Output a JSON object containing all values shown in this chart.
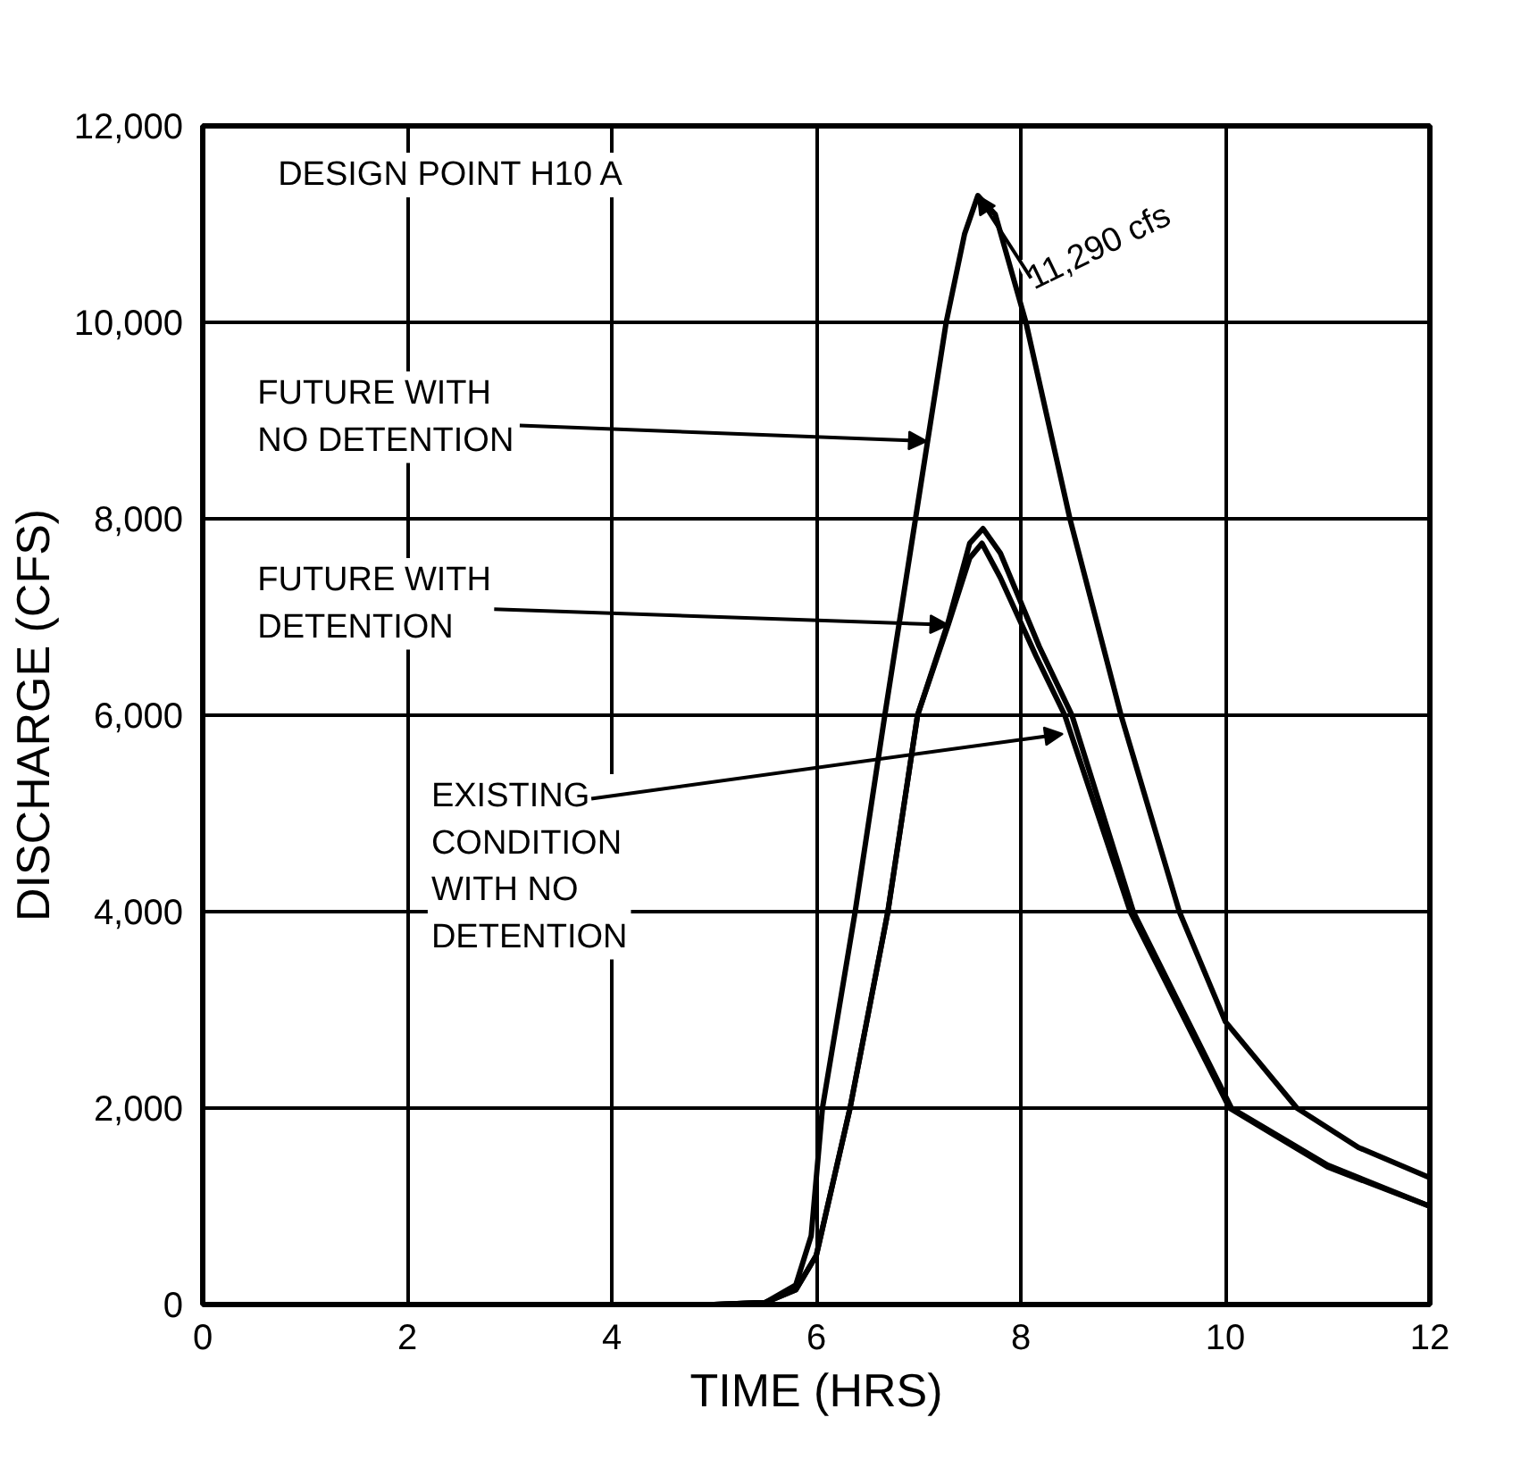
{
  "chart_data": {
    "type": "line",
    "xlabel": "TIME (HRS)",
    "ylabel": "DISCHARGE (CFS)",
    "xlim": [
      0,
      12
    ],
    "ylim": [
      0,
      12000
    ],
    "xticks": [
      0,
      2,
      4,
      6,
      8,
      10,
      12
    ],
    "yticks": [
      0,
      {
        "value": 2000,
        "label": "2,000"
      },
      {
        "value": 4000,
        "label": "4,000"
      },
      {
        "value": 6000,
        "label": "6,000"
      },
      {
        "value": 8000,
        "label": "8,000"
      },
      {
        "value": 10000,
        "label": "10,000"
      },
      {
        "value": 12000,
        "label": "12,000"
      }
    ],
    "grid": true,
    "marker": "none",
    "line_style": "solid",
    "series": [
      {
        "color": "#000000",
        "x": [
          5.0,
          5.5,
          5.8,
          5.95,
          6.06,
          6.38,
          6.67,
          6.97,
          7.27,
          7.45,
          7.58,
          7.75,
          8.05,
          8.48,
          8.98,
          9.55,
          10.0,
          10.7,
          11.3,
          12.0
        ],
        "values": [
          0,
          20,
          200,
          700,
          2000,
          4000,
          6000,
          8000,
          10000,
          10900,
          11290,
          11100,
          10000,
          8000,
          6000,
          4000,
          2880,
          2000,
          1600,
          1290
        ]
      },
      {
        "color": "#000000",
        "x": [
          5.0,
          5.5,
          5.8,
          6.0,
          6.33,
          6.7,
          6.99,
          7.29,
          7.5,
          7.62,
          7.8,
          8.15,
          8.43,
          9.07,
          10.04,
          11.0,
          12.0
        ],
        "values": [
          0,
          20,
          150,
          500,
          2000,
          4000,
          6000,
          6920,
          7600,
          7750,
          7400,
          6600,
          6000,
          4000,
          2000,
          1400,
          1000
        ]
      },
      {
        "color": "#000000",
        "x": [
          5.0,
          5.5,
          5.8,
          6.0,
          6.33,
          6.7,
          6.99,
          7.29,
          7.5,
          7.63,
          7.8,
          8.18,
          8.5,
          9.1,
          10.06,
          11.0,
          12.0
        ],
        "values": [
          0,
          20,
          150,
          500,
          2000,
          4000,
          6000,
          6950,
          7750,
          7900,
          7650,
          6700,
          6000,
          4000,
          2000,
          1420,
          1000
        ]
      }
    ],
    "annotations": [
      "DESIGN    POINT H10 A",
      {
        "text": "11,290 cfs",
        "x": 7.58,
        "y": 11290
      },
      {
        "text": "FUTURE WITH\nNO DETENTION",
        "x": 7.08,
        "y": 8790
      },
      {
        "text": "FUTURE WITH\nDETENTION",
        "x": 7.29,
        "y": 6920
      },
      {
        "text": "EXISTING\nCONDITION\nWITH NO\nDETENTION",
        "x": 8.41,
        "y": 5810
      }
    ]
  }
}
